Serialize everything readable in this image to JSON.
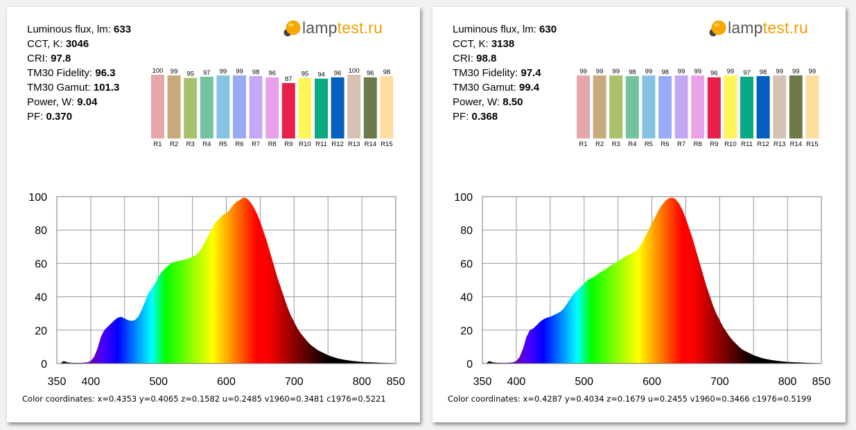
{
  "brand": {
    "name_part1": "lamp",
    "name_part2": "test.ru",
    "logo_icon": "bulb-icon"
  },
  "panels": [
    {
      "params": [
        {
          "label": "Luminous flux, lm: ",
          "value": "633"
        },
        {
          "label": "CCT, K: ",
          "value": "3046"
        },
        {
          "label": "CRI: ",
          "value": "97.8"
        },
        {
          "label": "TM30 Fidelity: ",
          "value": "96.3"
        },
        {
          "label": "TM30 Gamut: ",
          "value": "101.3"
        },
        {
          "label": "Power, W:  ",
          "value": "9.04"
        },
        {
          "label": "PF:  ",
          "value": "0.370"
        }
      ],
      "cri_values": [
        100,
        99,
        95,
        97,
        99,
        99,
        98,
        96,
        87,
        95,
        94,
        96,
        100,
        96,
        98
      ],
      "coords": "Color coordinates: x=0.4353 y=0.4065 z=0.1582 u=0.2485 v1960=0.3481 c1976=0.5221"
    },
    {
      "params": [
        {
          "label": "Luminous flux, lm: ",
          "value": "630"
        },
        {
          "label": "CCT, K: ",
          "value": "3138"
        },
        {
          "label": "CRI: ",
          "value": "98.8"
        },
        {
          "label": "TM30 Fidelity: ",
          "value": "97.4"
        },
        {
          "label": "TM30 Gamut: ",
          "value": "99.4"
        },
        {
          "label": "Power, W:  ",
          "value": "8.50"
        },
        {
          "label": "PF:  ",
          "value": "0.368"
        }
      ],
      "cri_values": [
        99,
        99,
        99,
        98,
        99,
        98,
        99,
        99,
        96,
        99,
        97,
        98,
        99,
        99,
        99
      ],
      "coords": "Color coordinates: x=0.4287 y=0.4034 z=0.1679 u=0.2455 v1960=0.3466 c1976=0.5199"
    }
  ],
  "cri_labels": [
    "R1",
    "R2",
    "R3",
    "R4",
    "R5",
    "R6",
    "R7",
    "R8",
    "R9",
    "R10",
    "R11",
    "R12",
    "R13",
    "R14",
    "R15"
  ],
  "cri_colors": [
    "#e6a6aa",
    "#c8ab7c",
    "#a9c06d",
    "#74c29f",
    "#86c3e3",
    "#98acf5",
    "#c4a8f8",
    "#e9a2ea",
    "#e6204a",
    "#fff45a",
    "#0aa884",
    "#045fc0",
    "#d6c1b5",
    "#6d7b4a",
    "#fede9e"
  ],
  "chart_data": [
    {
      "type": "area",
      "xlim": [
        350,
        850
      ],
      "ylim": [
        0,
        100
      ],
      "x_ticks": [
        350,
        400,
        500,
        600,
        700,
        800,
        850
      ],
      "y_ticks": [
        0,
        20,
        40,
        60,
        80,
        100
      ],
      "grid": true,
      "x": [
        350,
        355,
        360,
        365,
        370,
        375,
        380,
        385,
        390,
        395,
        400,
        405,
        410,
        415,
        420,
        425,
        430,
        435,
        440,
        445,
        450,
        455,
        460,
        465,
        470,
        475,
        480,
        485,
        490,
        495,
        500,
        505,
        510,
        515,
        520,
        525,
        530,
        535,
        540,
        545,
        550,
        555,
        560,
        565,
        570,
        575,
        580,
        585,
        590,
        595,
        600,
        605,
        610,
        615,
        620,
        625,
        630,
        635,
        640,
        645,
        650,
        655,
        660,
        665,
        670,
        675,
        680,
        685,
        690,
        695,
        700,
        705,
        710,
        715,
        720,
        725,
        730,
        735,
        740,
        745,
        750,
        755,
        760,
        765,
        770,
        775,
        780,
        785,
        790,
        795,
        800,
        805,
        810,
        815,
        820,
        825,
        830,
        835,
        840,
        845,
        850
      ],
      "values": [
        0,
        0,
        1.5,
        0.8,
        0.5,
        0.4,
        0.4,
        0.4,
        0.5,
        0.7,
        1.5,
        4,
        9,
        16,
        20,
        22,
        24,
        26,
        27.5,
        28,
        27,
        26,
        25.5,
        26,
        28,
        32,
        37,
        42,
        45,
        48,
        52,
        55,
        57,
        59,
        60.5,
        61,
        61.5,
        62,
        62.5,
        63,
        64,
        65,
        67,
        70,
        74,
        78,
        82,
        85,
        87,
        89,
        90,
        92,
        95,
        97,
        98,
        99.5,
        99,
        97,
        94,
        90,
        85,
        79,
        73,
        66,
        59,
        52,
        46,
        40,
        34,
        29,
        25,
        21,
        18,
        15.5,
        13,
        11,
        9.5,
        8,
        7,
        6,
        5,
        4.3,
        3.6,
        3,
        2.6,
        2.2,
        1.9,
        1.6,
        1.4,
        1.2,
        1,
        0.9,
        0.8,
        0.7,
        0.6,
        0.5,
        0.4,
        0.35,
        0.3,
        0.25,
        0.2
      ]
    },
    {
      "type": "area",
      "xlim": [
        350,
        850
      ],
      "ylim": [
        0,
        100
      ],
      "x_ticks": [
        350,
        400,
        500,
        600,
        700,
        800,
        850
      ],
      "y_ticks": [
        0,
        20,
        40,
        60,
        80,
        100
      ],
      "grid": true,
      "x": [
        350,
        355,
        360,
        365,
        370,
        375,
        380,
        385,
        390,
        395,
        400,
        405,
        410,
        415,
        420,
        425,
        430,
        435,
        440,
        445,
        450,
        455,
        460,
        465,
        470,
        475,
        480,
        485,
        490,
        495,
        500,
        505,
        510,
        515,
        520,
        525,
        530,
        535,
        540,
        545,
        550,
        555,
        560,
        565,
        570,
        575,
        580,
        585,
        590,
        595,
        600,
        605,
        610,
        615,
        620,
        625,
        630,
        635,
        640,
        645,
        650,
        655,
        660,
        665,
        670,
        675,
        680,
        685,
        690,
        695,
        700,
        705,
        710,
        715,
        720,
        725,
        730,
        735,
        740,
        745,
        750,
        755,
        760,
        765,
        770,
        775,
        780,
        785,
        790,
        795,
        800,
        805,
        810,
        815,
        820,
        825,
        830,
        835,
        840,
        845,
        850
      ],
      "values": [
        0,
        0,
        1.5,
        0.8,
        0.5,
        0.4,
        0.4,
        0.4,
        0.5,
        0.7,
        1.5,
        4,
        9,
        16,
        20,
        21,
        23,
        25,
        26.5,
        27.5,
        28,
        29,
        30,
        31,
        33,
        36,
        39,
        42,
        44,
        46,
        48,
        50,
        51,
        52,
        53.5,
        55,
        56,
        57.5,
        59,
        60,
        61.5,
        62.5,
        64,
        65,
        66,
        67,
        69,
        72,
        76,
        80,
        84,
        88,
        92,
        95,
        97.5,
        99,
        99.5,
        98.5,
        96,
        92,
        87,
        81,
        75,
        68,
        61,
        54,
        47,
        41,
        35,
        30,
        26,
        22,
        19,
        16,
        13.5,
        11.5,
        9.5,
        8,
        7,
        6,
        5,
        4.3,
        3.6,
        3,
        2.6,
        2.2,
        1.9,
        1.6,
        1.4,
        1.2,
        1,
        0.9,
        0.8,
        0.7,
        0.6,
        0.5,
        0.4,
        0.35,
        0.3,
        0.25,
        0.2
      ]
    }
  ]
}
